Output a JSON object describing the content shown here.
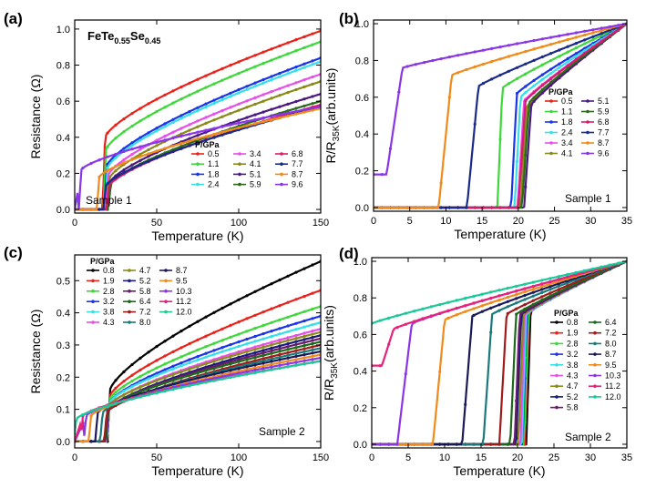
{
  "chart_data": [
    {
      "panel": "(a)",
      "type": "line",
      "title": "FeTe0.55Se0.45",
      "title_main": "FeTe",
      "title_sub1": "0.55",
      "title_mid": "Se",
      "title_sub2": "0.45",
      "xlabel": "Temperature (K)",
      "ylabel": "Resistance (Ω)",
      "xlim": [
        0,
        150
      ],
      "ylim": [
        -0.02,
        1.05
      ],
      "xticks": [
        0,
        50,
        100,
        150
      ],
      "yticks": [
        0.0,
        0.2,
        0.4,
        0.6,
        0.8,
        1.0
      ],
      "ytick_labels": [
        "0.0",
        "0.2",
        "0.4",
        "0.6",
        "0.8",
        "1.0"
      ],
      "annotation": "Sample 1",
      "legend_title": "P/GPa",
      "legend_position": "bottom-right",
      "series": [
        {
          "name": "0.5",
          "color": "#e8221a",
          "tc": 18.5,
          "r_onset": 0.4,
          "r_end": 0.99
        },
        {
          "name": "1.1",
          "color": "#3dd83a",
          "tc": 19.0,
          "r_onset": 0.33,
          "r_end": 0.93
        },
        {
          "name": "1.8",
          "color": "#1a34e8",
          "tc": 19.5,
          "r_onset": 0.24,
          "r_end": 0.84
        },
        {
          "name": "2.4",
          "color": "#35e0e8",
          "tc": 20.0,
          "r_onset": 0.23,
          "r_end": 0.82
        },
        {
          "name": "3.4",
          "color": "#e84ee8",
          "tc": 20.5,
          "r_onset": 0.19,
          "r_end": 0.75
        },
        {
          "name": "4.1",
          "color": "#8a8a1a",
          "tc": 21.0,
          "r_onset": 0.17,
          "r_end": 0.71
        },
        {
          "name": "5.1",
          "color": "#4a1a80",
          "tc": 21.5,
          "r_onset": 0.15,
          "r_end": 0.64
        },
        {
          "name": "5.9",
          "color": "#2a6b1a",
          "tc": 22.0,
          "r_onset": 0.14,
          "r_end": 0.6
        },
        {
          "name": "6.8",
          "color": "#d81a6a",
          "tc": 21.0,
          "r_onset": 0.13,
          "r_end": 0.58
        },
        {
          "name": "7.7",
          "color": "#1a2a8a",
          "tc": 19.0,
          "r_onset": 0.13,
          "r_end": 0.57
        },
        {
          "name": "8.7",
          "color": "#f08a1a",
          "tc": 15.0,
          "r_onset": 0.18,
          "r_end": 0.56
        },
        {
          "name": "9.6",
          "color": "#8a35e8",
          "tc": 4.0,
          "r_onset": 0.22,
          "r_end": 0.57
        }
      ]
    },
    {
      "panel": "(b)",
      "type": "line",
      "xlabel": "Temperature (K)",
      "ylabel": "R/R35K(arb.units)",
      "ylabel_main": "R/R",
      "ylabel_sub": "35K",
      "ylabel_tail": "(arb.units)",
      "xlim": [
        0,
        35
      ],
      "ylim": [
        -0.02,
        1.02
      ],
      "xticks": [
        0,
        5,
        10,
        15,
        20,
        25,
        30,
        35
      ],
      "yticks": [
        0.0,
        0.2,
        0.4,
        0.6,
        0.8,
        1.0
      ],
      "ytick_labels": [
        "0.0",
        "0.2",
        "0.4",
        "0.6",
        "0.8",
        "1.0"
      ],
      "annotation": "Sample 1",
      "legend_title": "P/GPa",
      "legend_position": "right",
      "series": [
        {
          "name": "0.5",
          "color": "#e8221a",
          "tc": 21.0,
          "width": 0.6,
          "r_norm": 0.53
        },
        {
          "name": "1.1",
          "color": "#3dd83a",
          "tc": 17.8,
          "width": 0.7,
          "r_norm": 0.65
        },
        {
          "name": "1.8",
          "color": "#1a34e8",
          "tc": 19.8,
          "width": 0.8,
          "r_norm": 0.62
        },
        {
          "name": "2.4",
          "color": "#35e0e8",
          "tc": 20.3,
          "width": 0.8,
          "r_norm": 0.6
        },
        {
          "name": "3.4",
          "color": "#e84ee8",
          "tc": 20.8,
          "width": 0.9,
          "r_norm": 0.58
        },
        {
          "name": "4.1",
          "color": "#8a8a1a",
          "tc": 21.2,
          "width": 0.9,
          "r_norm": 0.55
        },
        {
          "name": "5.1",
          "color": "#4a1a80",
          "tc": 21.8,
          "width": 1.0,
          "r_norm": 0.56
        },
        {
          "name": "5.9",
          "color": "#2a6b1a",
          "tc": 21.5,
          "width": 1.0,
          "r_norm": 0.57
        },
        {
          "name": "6.8",
          "color": "#d81a6a",
          "tc": 21.0,
          "width": 1.0,
          "r_norm": 0.58
        },
        {
          "name": "7.7",
          "color": "#1a2a8a",
          "tc": 14.5,
          "width": 1.6,
          "r_norm": 0.66
        },
        {
          "name": "8.7",
          "color": "#f08a1a",
          "tc": 10.8,
          "width": 1.8,
          "r_norm": 0.72
        },
        {
          "name": "9.6",
          "color": "#8a35e8",
          "tc": 4.0,
          "width": 2.2,
          "r_norm": 0.76,
          "floor": 0.18
        }
      ]
    },
    {
      "panel": "(c)",
      "type": "line",
      "xlabel": "Temperature (K)",
      "ylabel": "Resistance (Ω)",
      "xlim": [
        0,
        150
      ],
      "ylim": [
        -0.02,
        0.58
      ],
      "xticks": [
        0,
        50,
        100,
        150
      ],
      "yticks": [
        0.0,
        0.1,
        0.2,
        0.3,
        0.4,
        0.5
      ],
      "ytick_labels": [
        "0.0",
        "0.1",
        "0.2",
        "0.3",
        "0.4",
        "0.5"
      ],
      "annotation": "Sample 2",
      "legend_title": "P/GPa",
      "legend_position": "top-left",
      "series": [
        {
          "name": "0.8",
          "color": "#000000",
          "tc": 21.5,
          "r_onset": 0.16,
          "r_end": 0.56
        },
        {
          "name": "1.9",
          "color": "#e8221a",
          "tc": 21.3,
          "r_onset": 0.14,
          "r_end": 0.47
        },
        {
          "name": "2.8",
          "color": "#3dd83a",
          "tc": 21.2,
          "r_onset": 0.13,
          "r_end": 0.42
        },
        {
          "name": "3.2",
          "color": "#1a34e8",
          "tc": 21.0,
          "r_onset": 0.12,
          "r_end": 0.39
        },
        {
          "name": "3.8",
          "color": "#35e0e8",
          "tc": 21.0,
          "r_onset": 0.12,
          "r_end": 0.37
        },
        {
          "name": "4.3",
          "color": "#e84ee8",
          "tc": 20.8,
          "r_onset": 0.11,
          "r_end": 0.35
        },
        {
          "name": "4.7",
          "color": "#8a8a1a",
          "tc": 20.5,
          "r_onset": 0.11,
          "r_end": 0.34
        },
        {
          "name": "5.2",
          "color": "#1a1a7a",
          "tc": 20.5,
          "r_onset": 0.1,
          "r_end": 0.33
        },
        {
          "name": "5.8",
          "color": "#6a1a6a",
          "tc": 20.3,
          "r_onset": 0.1,
          "r_end": 0.32
        },
        {
          "name": "6.4",
          "color": "#1a6a1a",
          "tc": 20.0,
          "r_onset": 0.1,
          "r_end": 0.31
        },
        {
          "name": "7.2",
          "color": "#a01a1a",
          "tc": 19.5,
          "r_onset": 0.09,
          "r_end": 0.3
        },
        {
          "name": "8.0",
          "color": "#1a7a7a",
          "tc": 17.0,
          "r_onset": 0.09,
          "r_end": 0.29
        },
        {
          "name": "8.7",
          "color": "#1a1a5a",
          "tc": 14.0,
          "r_onset": 0.09,
          "r_end": 0.28
        },
        {
          "name": "9.5",
          "color": "#f08a1a",
          "tc": 10.0,
          "r_onset": 0.08,
          "r_end": 0.27
        },
        {
          "name": "10.3",
          "color": "#8a35e8",
          "tc": 7.0,
          "r_onset": 0.08,
          "r_end": 0.26
        },
        {
          "name": "11.2",
          "color": "#e8227a",
          "tc": 5.0,
          "r_onset": 0.08,
          "r_end": 0.25
        },
        {
          "name": "12.0",
          "color": "#1ac89a",
          "tc": 1.0,
          "r_onset": 0.07,
          "r_end": 0.25
        }
      ]
    },
    {
      "panel": "(d)",
      "type": "line",
      "xlabel": "Temperature (K)",
      "ylabel": "R/R35K(arb.units)",
      "ylabel_main": "R/R",
      "ylabel_sub": "35K",
      "ylabel_tail": "(arb.units)",
      "xlim": [
        0,
        35
      ],
      "ylim": [
        -0.02,
        1.02
      ],
      "xticks": [
        0,
        5,
        10,
        15,
        20,
        25,
        30,
        35
      ],
      "yticks": [
        0.0,
        0.2,
        0.4,
        0.6,
        0.8,
        1.0
      ],
      "ytick_labels": [
        "0.0",
        "0.2",
        "0.4",
        "0.6",
        "0.8",
        "1.0"
      ],
      "annotation": "Sample 2",
      "legend_title": "P/GPa",
      "legend_position": "right",
      "series": [
        {
          "name": "0.8",
          "color": "#000000",
          "tc": 21.8,
          "width": 0.6,
          "r_norm": 0.73
        },
        {
          "name": "1.9",
          "color": "#e8221a",
          "tc": 21.6,
          "width": 0.6,
          "r_norm": 0.72
        },
        {
          "name": "2.8",
          "color": "#3dd83a",
          "tc": 21.5,
          "width": 0.6,
          "r_norm": 0.72
        },
        {
          "name": "3.2",
          "color": "#1a34e8",
          "tc": 21.3,
          "width": 0.6,
          "r_norm": 0.72
        },
        {
          "name": "3.8",
          "color": "#35e0e8",
          "tc": 21.2,
          "width": 0.6,
          "r_norm": 0.71
        },
        {
          "name": "4.3",
          "color": "#e84ee8",
          "tc": 21.0,
          "width": 0.6,
          "r_norm": 0.71
        },
        {
          "name": "4.7",
          "color": "#8a8a1a",
          "tc": 20.8,
          "width": 0.7,
          "r_norm": 0.71
        },
        {
          "name": "5.2",
          "color": "#1a1a7a",
          "tc": 20.5,
          "width": 0.7,
          "r_norm": 0.71
        },
        {
          "name": "5.8",
          "color": "#6a1a6a",
          "tc": 20.3,
          "width": 0.7,
          "r_norm": 0.71
        },
        {
          "name": "6.4",
          "color": "#1a6a1a",
          "tc": 19.8,
          "width": 0.8,
          "r_norm": 0.71
        },
        {
          "name": "7.2",
          "color": "#a01a1a",
          "tc": 18.5,
          "width": 1.0,
          "r_norm": 0.71
        },
        {
          "name": "8.0",
          "color": "#1a7a7a",
          "tc": 16.5,
          "width": 1.2,
          "r_norm": 0.71
        },
        {
          "name": "8.7",
          "color": "#1a1a5a",
          "tc": 13.8,
          "width": 1.4,
          "r_norm": 0.7
        },
        {
          "name": "9.5",
          "color": "#f08a1a",
          "tc": 10.0,
          "width": 1.6,
          "r_norm": 0.68
        },
        {
          "name": "10.3",
          "color": "#8a35e8",
          "tc": 5.5,
          "width": 2.0,
          "r_norm": 0.66
        },
        {
          "name": "11.2",
          "color": "#e8227a",
          "tc": 3.0,
          "width": 1.6,
          "r_norm": 0.63,
          "floor": 0.43
        },
        {
          "name": "12.0",
          "color": "#1ac89a",
          "tc": 0,
          "width": 1.0,
          "r_norm": 0.66,
          "floor": 0.66
        }
      ]
    }
  ]
}
